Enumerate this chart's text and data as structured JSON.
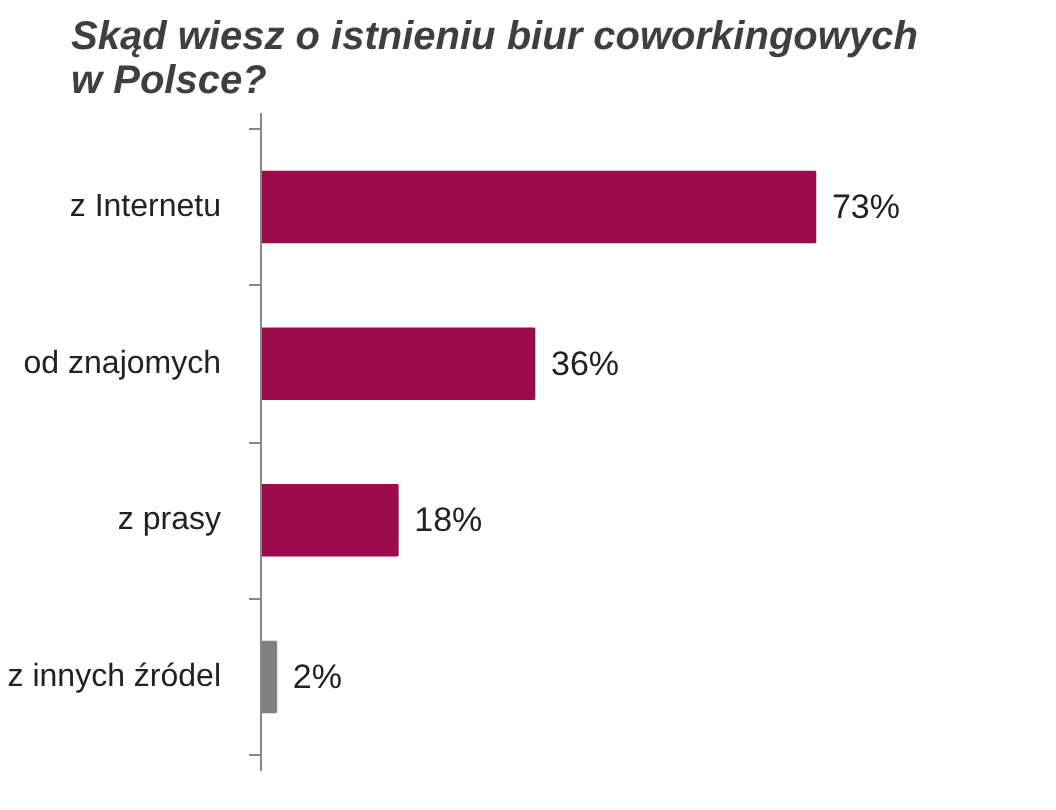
{
  "chart_data": {
    "type": "bar",
    "orientation": "horizontal",
    "title": "Skąd wiesz o istnieniu biur coworkingowych w Polsce?",
    "categories": [
      "z Internetu",
      "od znajomych",
      "z prasy",
      "z innych źródel"
    ],
    "values": [
      73,
      36,
      18,
      2
    ],
    "colors": [
      "#9c0c4c",
      "#9c0c4c",
      "#9c0c4c",
      "#808080"
    ],
    "value_labels": [
      "73%",
      "36%",
      "18%",
      "2%"
    ],
    "grid": false
  }
}
